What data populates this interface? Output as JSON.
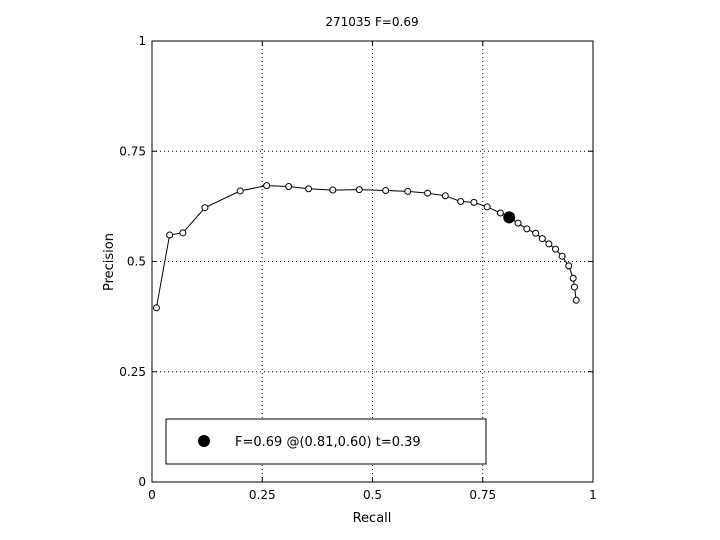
{
  "chart_data": {
    "type": "line",
    "title": "271035 F=0.69",
    "xlabel": "Recall",
    "ylabel": "Precision",
    "xlim": [
      0,
      1
    ],
    "ylim": [
      0,
      1
    ],
    "xticks": [
      0,
      0.25,
      0.5,
      0.75,
      1
    ],
    "yticks": [
      0,
      0.25,
      0.5,
      0.75,
      1
    ],
    "xtick_labels": [
      "0",
      "0.25",
      "0.5",
      "0.75",
      "1"
    ],
    "ytick_labels": [
      "0",
      "0.25",
      "0.5",
      "0.75",
      "1"
    ],
    "grid": true,
    "legend_position": "bottom-left",
    "series": [
      {
        "marker": "open-circle",
        "color": "#000000",
        "x": [
          0.01,
          0.04,
          0.07,
          0.12,
          0.2,
          0.26,
          0.31,
          0.355,
          0.41,
          0.47,
          0.53,
          0.58,
          0.625,
          0.665,
          0.7,
          0.73,
          0.76,
          0.79,
          0.81,
          0.83,
          0.85,
          0.87,
          0.885,
          0.9,
          0.915,
          0.93,
          0.945,
          0.955,
          0.958,
          0.962
        ],
        "y": [
          0.395,
          0.56,
          0.565,
          0.622,
          0.66,
          0.672,
          0.67,
          0.665,
          0.662,
          0.663,
          0.661,
          0.659,
          0.655,
          0.649,
          0.636,
          0.634,
          0.624,
          0.61,
          0.6,
          0.587,
          0.574,
          0.564,
          0.552,
          0.54,
          0.528,
          0.512,
          0.49,
          0.462,
          0.442,
          0.412
        ]
      }
    ],
    "best_point": {
      "x": 0.81,
      "y": 0.6,
      "marker": "filled-circle",
      "color": "#000000"
    },
    "legend": {
      "entries": [
        {
          "label": "F=0.69 @(0.81,0.60) t=0.39",
          "marker": "filled-circle"
        }
      ]
    }
  }
}
